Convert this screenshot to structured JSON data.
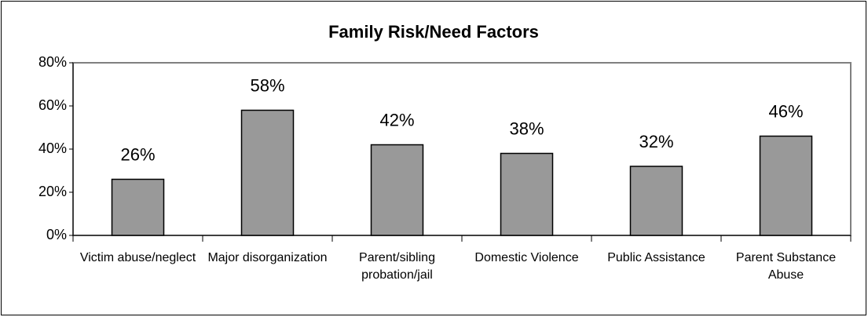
{
  "chart_data": {
    "type": "bar",
    "title": "Family Risk/Need Factors",
    "categories": [
      "Victim abuse/neglect",
      "Major disorganization",
      "Parent/sibling probation/jail",
      "Domestic Violence",
      "Public Assistance",
      "Parent Substance Abuse"
    ],
    "values": [
      26,
      58,
      42,
      38,
      32,
      46
    ],
    "value_labels": [
      "26%",
      "58%",
      "42%",
      "38%",
      "32%",
      "46%"
    ],
    "color": "#999999",
    "ylim": [
      0,
      80
    ],
    "yticks": [
      {
        "value": 0,
        "label": "0%"
      },
      {
        "value": 20,
        "label": "20%"
      },
      {
        "value": 40,
        "label": "40%"
      },
      {
        "value": 60,
        "label": "60%"
      },
      {
        "value": 80,
        "label": "80%"
      }
    ],
    "grid": false
  }
}
